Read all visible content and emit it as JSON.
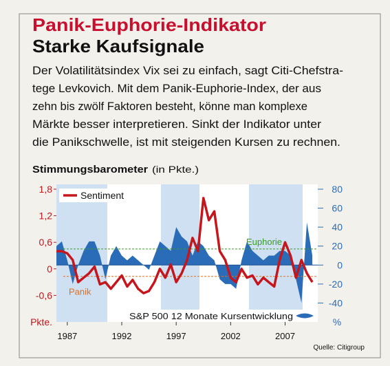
{
  "chart_data": {
    "type": "line",
    "title": "Panik-Euphorie-Indikator",
    "subtitle": "Starke Kaufsignale",
    "description": [
      "Der Volatilitätsindex Vix sei zu einfach, sagt Citi-Chefstra-",
      "tege Levkovich. Mit dem Panik-Euphorie-Index, der aus",
      "zehn bis zwölf Faktoren besteht, könne man komplexe",
      "Märkte besser interpretieren. Sinkt der Indikator unter",
      "die Panikschwelle, ist mit steigenden Kursen zu rechnen."
    ],
    "chart_title": "Stimmungsbarometer",
    "chart_unit": "(in Pkte.)",
    "source": "Quelle: Citigroup",
    "y_unit": "Pkte.",
    "y2_unit": "%",
    "x": [
      1986,
      1986.5,
      1987,
      1987.5,
      1988,
      1988.5,
      1989,
      1989.5,
      1990,
      1990.5,
      1991,
      1991.5,
      1992,
      1992.5,
      1993,
      1993.5,
      1994,
      1994.5,
      1995,
      1995.5,
      1996,
      1996.5,
      1997,
      1997.5,
      1998,
      1998.5,
      1999,
      1999.5,
      2000,
      2000.5,
      2001,
      2001.5,
      2002,
      2002.5,
      2003,
      2003.5,
      2004,
      2004.5,
      2005,
      2005.5,
      2006,
      2006.5,
      2007,
      2007.5,
      2008,
      2008.5,
      2009,
      2009.5
    ],
    "xlim": [
      1986,
      2010
    ],
    "xticks": [
      1987,
      1992,
      1997,
      2002,
      2007
    ],
    "ylim": [
      -1.2,
      1.8
    ],
    "yticks": [
      {
        "value": 1.8,
        "label": "1,8"
      },
      {
        "value": 1.2,
        "label": "1,2"
      },
      {
        "value": 0.6,
        "label": "0,6"
      },
      0,
      {
        "value": -0.6,
        "label": "-0,6"
      }
    ],
    "y2lim": [
      -60,
      80
    ],
    "y2ticks": [
      80,
      60,
      40,
      20,
      0,
      -20,
      -40
    ],
    "series": [
      {
        "name": "Sentiment",
        "color": "#c4161c",
        "values": [
          0.4,
          0.4,
          0.35,
          0.2,
          -0.3,
          -0.2,
          -0.1,
          0.05,
          -0.35,
          -0.3,
          -0.45,
          -0.3,
          -0.15,
          -0.4,
          -0.25,
          -0.45,
          -0.55,
          -0.5,
          -0.3,
          0,
          -0.2,
          0.1,
          -0.3,
          -0.1,
          0.2,
          0.7,
          0.4,
          1.6,
          1.1,
          1.3,
          0.4,
          0.2,
          -0.2,
          -0.3,
          0,
          -0.2,
          -0.15,
          -0.35,
          -0.2,
          -0.3,
          -0.4,
          0.2,
          0.6,
          0.3,
          -0.2,
          0.2,
          -0.1,
          -0.3
        ]
      },
      {
        "name": "S&P 500 12 Monate Kursentwicklung",
        "color": "#2a6cb8",
        "axis": "y2",
        "values": [
          20,
          25,
          5,
          -20,
          0,
          15,
          25,
          25,
          10,
          -15,
          10,
          20,
          10,
          5,
          10,
          5,
          0,
          -5,
          10,
          25,
          20,
          15,
          40,
          30,
          25,
          10,
          25,
          20,
          10,
          5,
          -15,
          -20,
          -20,
          -25,
          5,
          25,
          15,
          10,
          5,
          10,
          10,
          15,
          15,
          10,
          -15,
          -40,
          45,
          10
        ]
      }
    ],
    "annotations": [
      {
        "label": "Euphorie",
        "value": 0.45,
        "color": "#3a9a2a"
      },
      {
        "label": "Panik",
        "value": -0.17,
        "color": "#e07020"
      }
    ]
  }
}
